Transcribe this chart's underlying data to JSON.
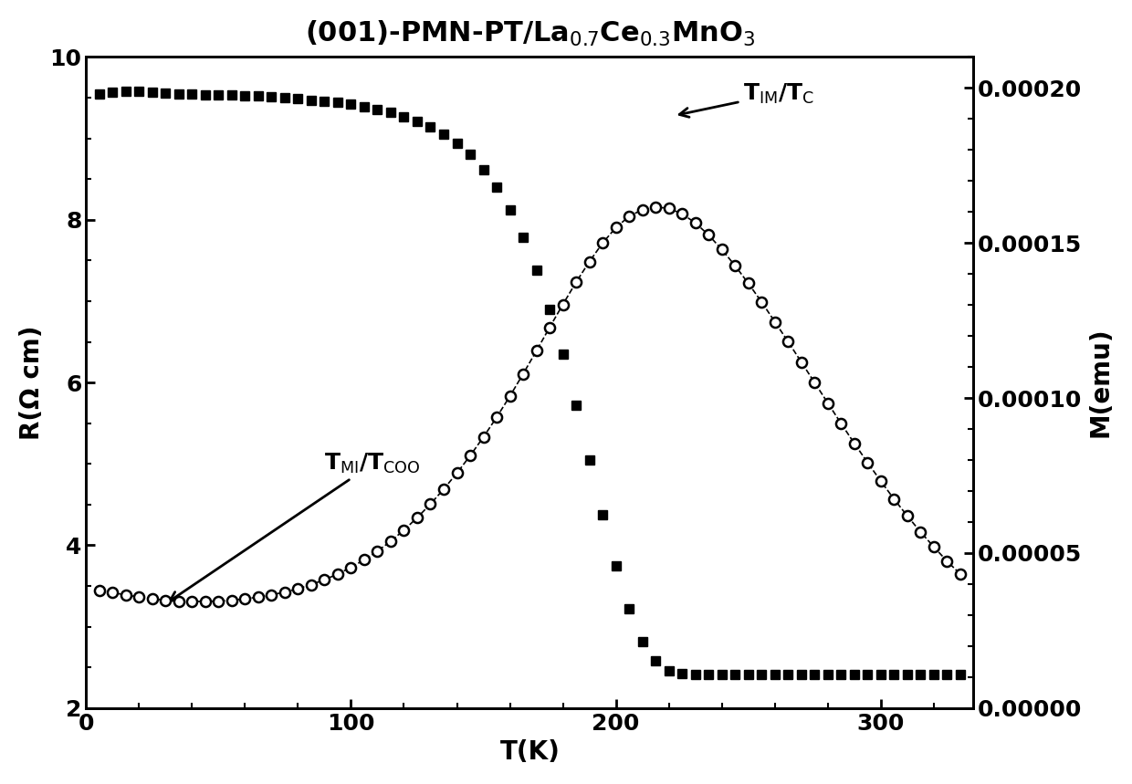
{
  "title_plain": "(001)-PMN-PT/La",
  "title_sub1": "0.7",
  "title_mid": "Ce",
  "title_sub2": "0.3",
  "title_end": "MnO",
  "title_sub3": "3",
  "xlabel": "T(K)",
  "ylabel_left": "R(Ω cm)",
  "ylabel_right": "M(emu)",
  "xlim": [
    0,
    335
  ],
  "ylim_left": [
    2,
    10
  ],
  "ylim_right": [
    0.0,
    0.00021
  ],
  "yticks_left": [
    2,
    4,
    6,
    8,
    10
  ],
  "yticks_right": [
    0.0,
    5e-05,
    0.0001,
    0.00015,
    0.0002
  ],
  "xticks": [
    0,
    100,
    200,
    300
  ],
  "R_T": [
    5,
    10,
    15,
    20,
    25,
    30,
    35,
    40,
    45,
    50,
    55,
    60,
    65,
    70,
    75,
    80,
    85,
    90,
    95,
    100,
    105,
    110,
    115,
    120,
    125,
    130,
    135,
    140,
    145,
    150,
    155,
    160,
    165,
    170,
    175,
    180,
    185,
    190,
    195,
    200,
    205,
    210,
    215,
    220,
    225,
    230,
    235,
    240,
    245,
    250,
    255,
    260,
    265,
    270,
    275,
    280,
    285,
    290,
    295,
    300,
    305,
    310,
    315,
    320,
    325,
    330
  ],
  "R_vals": [
    9.55,
    9.57,
    9.58,
    9.58,
    9.57,
    9.56,
    9.55,
    9.55,
    9.54,
    9.54,
    9.53,
    9.52,
    9.52,
    9.51,
    9.5,
    9.49,
    9.47,
    9.46,
    9.44,
    9.42,
    9.39,
    9.36,
    9.32,
    9.27,
    9.21,
    9.14,
    9.05,
    8.94,
    8.8,
    8.62,
    8.4,
    8.12,
    7.78,
    7.38,
    6.9,
    6.35,
    5.72,
    5.05,
    4.38,
    3.75,
    3.22,
    2.82,
    2.58,
    2.46,
    2.42,
    2.41,
    2.41,
    2.41,
    2.41,
    2.41,
    2.41,
    2.41,
    2.41,
    2.41,
    2.41,
    2.41,
    2.41,
    2.41,
    2.41,
    2.41,
    2.41,
    2.41,
    2.41,
    2.41,
    2.41,
    2.41
  ],
  "M_T": [
    5,
    10,
    15,
    20,
    25,
    30,
    35,
    40,
    45,
    50,
    55,
    60,
    65,
    70,
    75,
    80,
    85,
    90,
    95,
    100,
    105,
    110,
    115,
    120,
    125,
    130,
    135,
    140,
    145,
    150,
    155,
    160,
    165,
    170,
    175,
    180,
    185,
    190,
    195,
    200,
    205,
    210,
    215,
    220,
    225,
    230,
    235,
    240,
    245,
    250,
    255,
    260,
    265,
    270,
    275,
    280,
    285,
    290,
    295,
    300,
    305,
    310,
    315,
    320,
    325,
    330
  ],
  "M_vals": [
    3.8e-05,
    3.72e-05,
    3.65e-05,
    3.58e-05,
    3.52e-05,
    3.48e-05,
    3.45e-05,
    3.44e-05,
    3.44e-05,
    3.45e-05,
    3.48e-05,
    3.52e-05,
    3.58e-05,
    3.65e-05,
    3.74e-05,
    3.85e-05,
    3.98e-05,
    4.14e-05,
    4.32e-05,
    4.54e-05,
    4.78e-05,
    5.06e-05,
    5.38e-05,
    5.74e-05,
    6.14e-05,
    6.58e-05,
    7.06e-05,
    7.58e-05,
    8.14e-05,
    8.74e-05,
    9.38e-05,
    0.0001006,
    0.0001078,
    0.0001152,
    0.0001228,
    0.0001302,
    0.0001374,
    0.000144,
    0.00015,
    0.000155,
    0.0001586,
    0.0001608,
    0.0001616,
    0.0001612,
    0.0001594,
    0.0001565,
    0.0001526,
    0.0001479,
    0.0001427,
    0.000137,
    0.000131,
    0.0001246,
    0.0001182,
    0.0001116,
    0.000105,
    9.84e-05,
    9.18e-05,
    8.54e-05,
    7.92e-05,
    7.32e-05,
    6.74e-05,
    6.2e-05,
    5.68e-05,
    5.2e-05,
    4.74e-05,
    4.32e-05
  ],
  "title_fontsize": 22,
  "label_fontsize": 20,
  "tick_fontsize": 18,
  "annotation_fontsize": 18
}
